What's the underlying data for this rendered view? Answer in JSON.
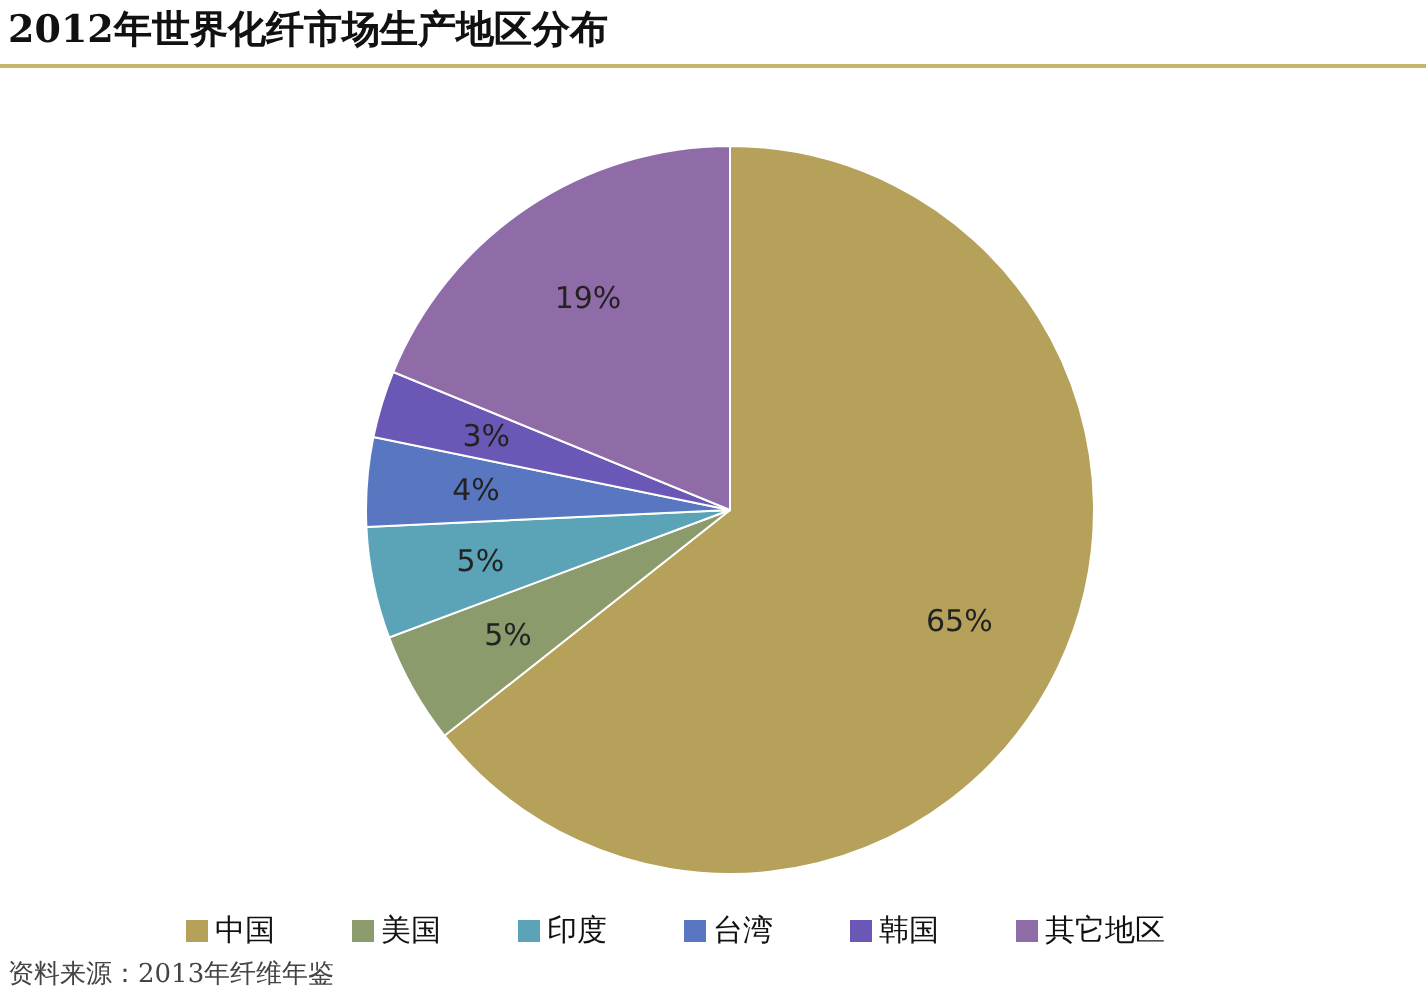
{
  "chart_data": {
    "type": "pie",
    "title": "2012年世界化纤市场生产地区分布",
    "categories": [
      "中国",
      "美国",
      "印度",
      "台湾",
      "韩国",
      "其它地区"
    ],
    "values": [
      65,
      5,
      5,
      4,
      3,
      19
    ],
    "value_labels": [
      "65%",
      "5%",
      "5%",
      "4%",
      "3%",
      "19%"
    ],
    "colors": [
      "#b5a15a",
      "#8b9b6c",
      "#5ba3b6",
      "#5877c0",
      "#6b58b6",
      "#8f6ba8"
    ],
    "legend": "bottom",
    "annotations": [
      "资料来源：2013年纤维年鉴"
    ]
  }
}
